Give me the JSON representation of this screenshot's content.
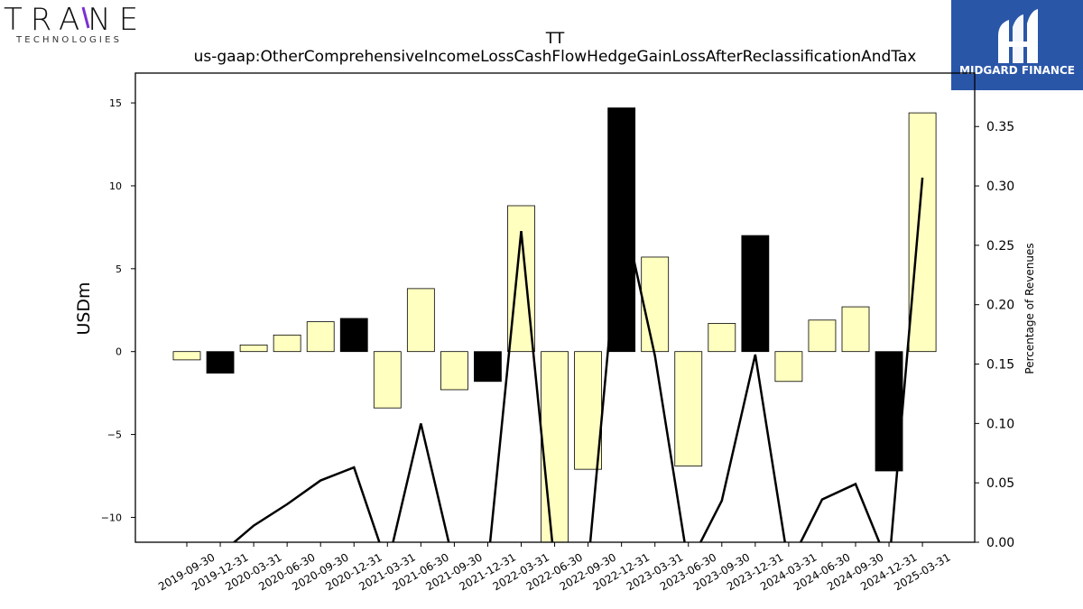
{
  "logos": {
    "left_main": "TRANE",
    "left_sub": "TECHNOLOGIES",
    "right_text": "MIDGARD FINANCE"
  },
  "chart_data": {
    "type": "bar",
    "title": "TT",
    "subtitle": "us-gaap:OtherComprehensiveIncomeLossCashFlowHedgeGainLossAfterReclassificationAndTax",
    "ylabel": "USDm",
    "y2label": "Percentage of Revenues",
    "ylim": [
      -11.5,
      16.8
    ],
    "y2lim": [
      0.0,
      0.395
    ],
    "yticks": [
      -10,
      -5,
      0,
      5,
      10,
      15
    ],
    "y2ticks": [
      0.0,
      0.05,
      0.1,
      0.15,
      0.2,
      0.25,
      0.3,
      0.35
    ],
    "categories": [
      "2019-09-30",
      "2019-12-31",
      "2020-03-31",
      "2020-06-30",
      "2020-09-30",
      "2020-12-31",
      "2021-03-31",
      "2021-06-30",
      "2021-09-30",
      "2021-12-31",
      "2022-03-31",
      "2022-06-30",
      "2022-09-30",
      "2022-12-31",
      "2023-03-31",
      "2023-06-30",
      "2023-09-30",
      "2023-12-31",
      "2024-03-31",
      "2024-06-30",
      "2024-09-30",
      "2024-12-31",
      "2025-03-31"
    ],
    "series": [
      {
        "type": "bar",
        "values": [
          -0.5,
          -1.3,
          0.4,
          1.0,
          1.8,
          2.0,
          -3.4,
          3.8,
          -2.3,
          -1.8,
          8.8,
          -11.5,
          -7.1,
          14.7,
          5.7,
          -6.9,
          1.7,
          7.0,
          -1.8,
          1.9,
          2.7,
          -7.2,
          14.4
        ],
        "colors": [
          "#ffffc0",
          "#000000",
          "#ffffc0",
          "#ffffc0",
          "#ffffc0",
          "#000000",
          "#ffffc0",
          "#ffffc0",
          "#ffffc0",
          "#000000",
          "#ffffc0",
          "#ffffc0",
          "#ffffc0",
          "#000000",
          "#ffffc0",
          "#ffffc0",
          "#ffffc0",
          "#000000",
          "#ffffc0",
          "#ffffc0",
          "#ffffc0",
          "#000000",
          "#ffffc0"
        ]
      },
      {
        "type": "line",
        "axis": "right",
        "values": [
          -0.02,
          -0.01,
          0.014,
          0.032,
          0.052,
          0.063,
          -0.02,
          0.1,
          -0.02,
          -0.02,
          0.262,
          -0.02,
          -0.02,
          0.285,
          0.157,
          -0.02,
          0.035,
          0.158,
          -0.02,
          0.036,
          0.049,
          -0.02,
          0.307
        ]
      }
    ]
  }
}
